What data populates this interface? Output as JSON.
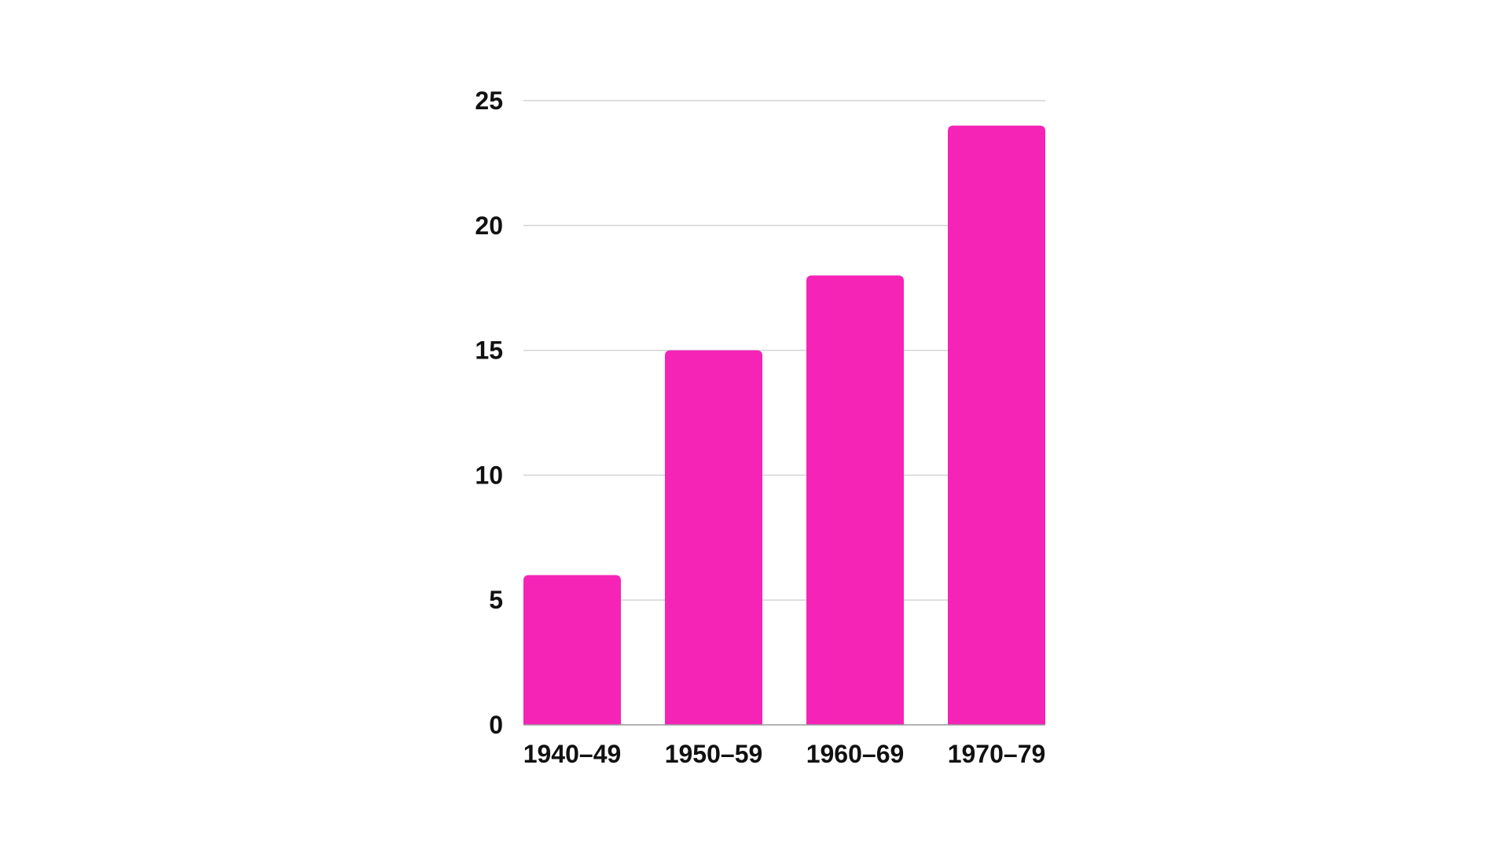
{
  "chart_data": {
    "type": "bar",
    "title": "",
    "xlabel": "",
    "ylabel": "",
    "categories": [
      "1940–49",
      "1950–59",
      "1960–69",
      "1970–79"
    ],
    "values": [
      6,
      15,
      18,
      24
    ],
    "ylim": [
      0,
      25
    ],
    "yticks": [
      "0",
      "5",
      "10",
      "15",
      "20",
      "25"
    ],
    "grid": true,
    "legend": "none",
    "colors": {
      "bar": "#F524B6",
      "grid": "#D4D4D4",
      "axis": "#9A9A9A",
      "text": "#111111"
    }
  }
}
